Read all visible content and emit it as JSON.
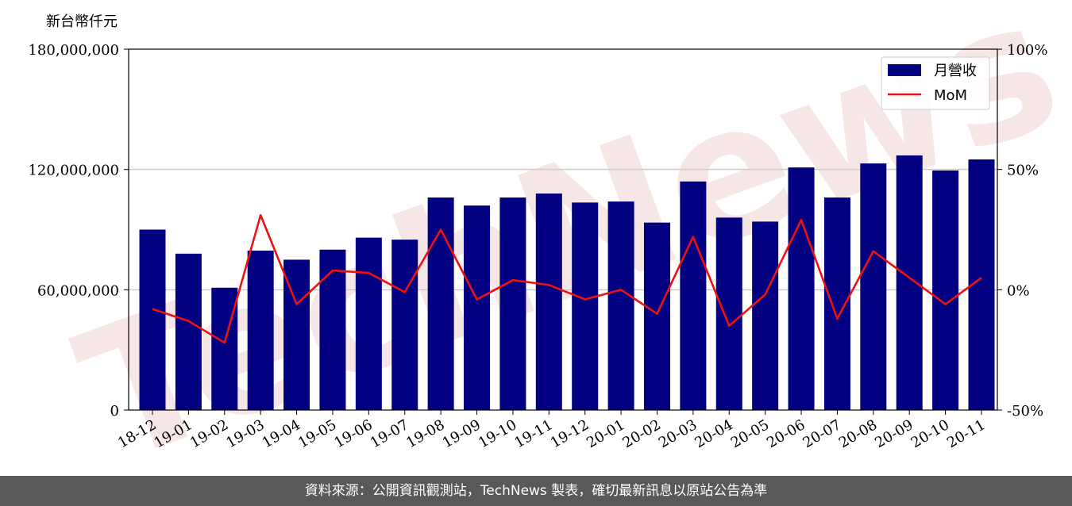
{
  "watermark": "TechNews",
  "footer": {
    "text": "資料來源：公開資訊觀測站，TechNews 製表，確切最新訊息以原站公告為準"
  },
  "colors": {
    "bar": "#000080",
    "line": "#ee1111",
    "grid": "#cccccc",
    "footer_bg": "#595959"
  },
  "chart_data": {
    "type": "bar",
    "title": "",
    "ylabel": "新台幣仟元",
    "ylim": [
      0,
      180000000
    ],
    "y2lim": [
      -50,
      100
    ],
    "y_ticks": [
      0,
      60000000,
      120000000,
      180000000
    ],
    "y_tick_labels": [
      "0",
      "60,000,000",
      "120,000,000",
      "180,000,000"
    ],
    "y2_ticks": [
      -50,
      0,
      50,
      100
    ],
    "y2_tick_labels": [
      "-50%",
      "0%",
      "50%",
      "100%"
    ],
    "grid": "horizontal",
    "legend_position": "top-right",
    "categories": [
      "18-12",
      "19-01",
      "19-02",
      "19-03",
      "19-04",
      "19-05",
      "19-06",
      "19-07",
      "19-08",
      "19-09",
      "19-10",
      "19-11",
      "19-12",
      "20-01",
      "20-02",
      "20-03",
      "20-04",
      "20-05",
      "20-06",
      "20-07",
      "20-08",
      "20-09",
      "20-10",
      "20-11"
    ],
    "series": [
      {
        "name": "月營收",
        "type": "bar",
        "axis": "left",
        "values": [
          90000000,
          78000000,
          61000000,
          79500000,
          75000000,
          80000000,
          86000000,
          85000000,
          106000000,
          102000000,
          106000000,
          108000000,
          103500000,
          104000000,
          93500000,
          114000000,
          96000000,
          94000000,
          121000000,
          106000000,
          123000000,
          127000000,
          119500000,
          125000000
        ]
      },
      {
        "name": "MoM",
        "type": "line",
        "axis": "right",
        "values": [
          -8,
          -13,
          -22,
          31,
          -6,
          8,
          7,
          -1,
          25,
          -4,
          4,
          2,
          -4,
          0,
          -10,
          22,
          -15,
          -2,
          29,
          -12,
          16,
          5,
          -6,
          5
        ]
      }
    ]
  }
}
